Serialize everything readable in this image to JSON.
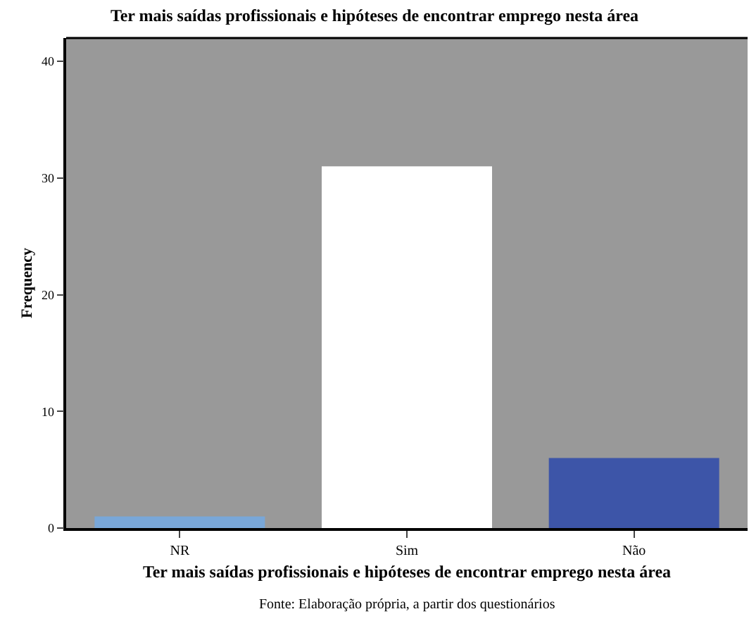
{
  "chart_data": {
    "type": "bar",
    "title": "Ter mais saídas profissionais e hipóteses de encontrar emprego nesta área",
    "xlabel": "Ter mais saídas profissionais e hipóteses de encontrar emprego nesta área",
    "ylabel": "Frequency",
    "categories": [
      "NR",
      "Sim",
      "Não"
    ],
    "values": [
      1,
      31,
      6
    ],
    "colors": [
      "#79a7d8",
      "#ffffff",
      "#3d55a8"
    ],
    "ylim": [
      0,
      42
    ],
    "yticks": [
      0,
      10,
      20,
      30,
      40
    ],
    "grid": false,
    "legend": false,
    "annotations": [
      "Fonte: Elaboração própria, a partir dos questionários"
    ]
  }
}
